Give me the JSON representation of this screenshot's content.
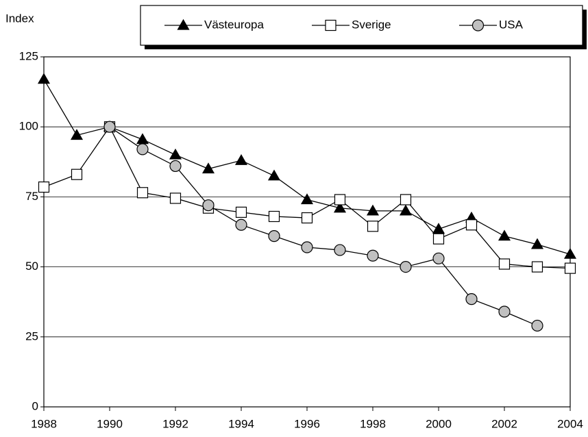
{
  "chart_data": {
    "type": "line",
    "y_label": "Index",
    "x": [
      1988,
      1989,
      1990,
      1991,
      1992,
      1993,
      1994,
      1995,
      1996,
      1997,
      1998,
      1999,
      2000,
      2001,
      2002,
      2003,
      2004
    ],
    "series": [
      {
        "name": "Västeuropa",
        "color": "#000000",
        "marker": "triangle",
        "values": [
          117,
          97,
          100,
          95.5,
          90,
          85,
          88,
          82.5,
          74,
          71,
          70,
          70,
          63.5,
          67.5,
          61,
          58,
          54.5
        ]
      },
      {
        "name": "Sverige",
        "color": "#ffffff",
        "marker": "square",
        "values": [
          78.5,
          83,
          100,
          76.5,
          74.5,
          71,
          69.5,
          68,
          67.5,
          74,
          64.5,
          74,
          60,
          65,
          51,
          50,
          49.5
        ]
      },
      {
        "name": "USA",
        "color": "#c0c0c0",
        "marker": "circle",
        "values": [
          null,
          null,
          100,
          92,
          86,
          72,
          65,
          61,
          57,
          56,
          54,
          50,
          53,
          38.5,
          34,
          29,
          null
        ]
      }
    ],
    "xlim": [
      1988,
      2004
    ],
    "xticks": [
      1988,
      1990,
      1992,
      1994,
      1996,
      1998,
      2000,
      2002,
      2004
    ],
    "ylim": [
      0,
      125
    ],
    "yticks": [
      0,
      25,
      50,
      75,
      100,
      125
    ],
    "grid": true,
    "legend": "top"
  }
}
